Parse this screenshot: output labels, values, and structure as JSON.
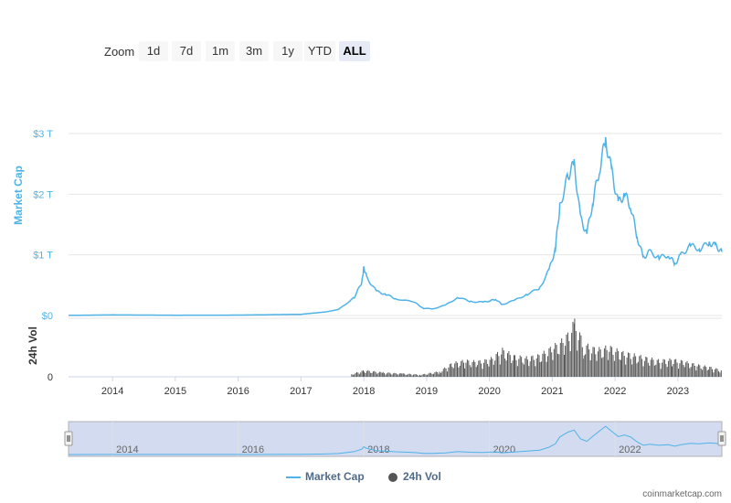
{
  "zoom": {
    "label": "Zoom",
    "buttons": [
      "1d",
      "7d",
      "1m",
      "3m",
      "1y",
      "YTD",
      "ALL"
    ],
    "active": "ALL"
  },
  "legend": {
    "market_cap": "Market Cap",
    "volume": "24h Vol"
  },
  "credits": "coinmarketcap.com",
  "colors": {
    "market_cap": "#4fb3e8",
    "volume": "#555555",
    "navigator_bg": "#d3dbf0",
    "grid": "#e6e6e6"
  },
  "chart_data": [
    {
      "type": "line",
      "ylabel": "Market Cap",
      "ylim": [
        0,
        3
      ],
      "y_ticks": [
        "$0",
        "$1 T",
        "$2 T",
        "$3 T"
      ],
      "x_ticks": [
        "2014",
        "2015",
        "2016",
        "2017",
        "2018",
        "2019",
        "2020",
        "2021",
        "2022",
        "2023"
      ],
      "x": [
        2013.3,
        2014.0,
        2015.0,
        2016.0,
        2017.0,
        2017.4,
        2017.6,
        2017.85,
        2017.97,
        2018.0,
        2018.05,
        2018.2,
        2018.35,
        2018.5,
        2018.8,
        2018.95,
        2019.1,
        2019.3,
        2019.5,
        2019.7,
        2019.9,
        2020.0,
        2020.1,
        2020.2,
        2020.4,
        2020.6,
        2020.8,
        2020.95,
        2021.05,
        2021.12,
        2021.25,
        2021.35,
        2021.45,
        2021.55,
        2021.65,
        2021.75,
        2021.85,
        2021.95,
        2022.05,
        2022.15,
        2022.25,
        2022.35,
        2022.45,
        2022.55,
        2022.7,
        2022.85,
        2022.95,
        2023.05,
        2023.2,
        2023.35,
        2023.5,
        2023.6,
        2023.7
      ],
      "series": [
        {
          "name": "Market Cap",
          "values": [
            0.003,
            0.01,
            0.005,
            0.007,
            0.02,
            0.06,
            0.1,
            0.3,
            0.55,
            0.8,
            0.62,
            0.4,
            0.35,
            0.28,
            0.22,
            0.12,
            0.11,
            0.17,
            0.3,
            0.23,
            0.22,
            0.24,
            0.27,
            0.18,
            0.25,
            0.35,
            0.45,
            0.75,
            1.1,
            1.8,
            2.3,
            2.5,
            1.6,
            1.35,
            1.9,
            2.4,
            2.9,
            2.35,
            1.85,
            2.0,
            1.8,
            1.3,
            0.95,
            1.05,
            0.95,
            1.0,
            0.85,
            1.0,
            1.15,
            1.1,
            1.2,
            1.15,
            1.05
          ]
        }
      ]
    },
    {
      "type": "bar",
      "ylabel": "24h Vol",
      "y_ticks": [
        "0"
      ],
      "x": [
        2017.8,
        2018.0,
        2018.3,
        2018.6,
        2018.9,
        2019.2,
        2019.4,
        2019.6,
        2019.8,
        2020.0,
        2020.2,
        2020.4,
        2020.6,
        2020.8,
        2021.0,
        2021.2,
        2021.35,
        2021.5,
        2021.7,
        2021.9,
        2022.1,
        2022.3,
        2022.5,
        2022.7,
        2022.9,
        2023.1,
        2023.3,
        2023.5,
        2023.7
      ],
      "series": [
        {
          "name": "24h Vol",
          "values": [
            0.05,
            0.12,
            0.08,
            0.06,
            0.04,
            0.1,
            0.25,
            0.3,
            0.28,
            0.32,
            0.5,
            0.38,
            0.35,
            0.4,
            0.55,
            0.7,
            1.0,
            0.6,
            0.5,
            0.55,
            0.45,
            0.4,
            0.35,
            0.3,
            0.32,
            0.28,
            0.22,
            0.18,
            0.12
          ]
        }
      ]
    }
  ],
  "navigator": {
    "x_ticks": [
      "2014",
      "2016",
      "2018",
      "2020",
      "2022"
    ]
  }
}
